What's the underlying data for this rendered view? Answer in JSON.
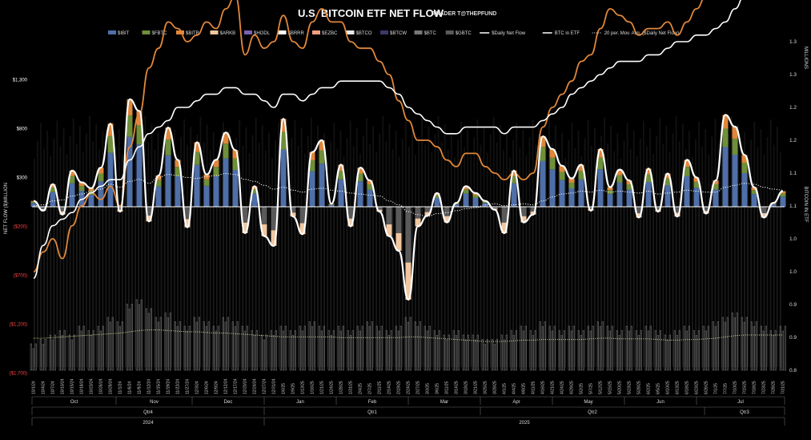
{
  "chart_data": {
    "type": "bar",
    "title": "U.S. BITCOIN ETF NET FLOW",
    "subtitle": "TRADER T@THEPFUND",
    "ylabel_left": "NET FLOW ($)MILLION",
    "ylabel_right": "BITCOIN IN ETF",
    "y2unit": "MILLIONS",
    "left_ticks": [
      {
        "label": "$1,300",
        "value": 1300,
        "color": "#ffffff"
      },
      {
        "label": "$800",
        "value": 800,
        "color": "#ffffff"
      },
      {
        "label": "$300",
        "value": 300,
        "color": "#ffffff"
      },
      {
        "label": "($200)",
        "value": -200,
        "color": "#ff4444"
      },
      {
        "label": "($700)",
        "value": -700,
        "color": "#ff4444"
      },
      {
        "label": "($1,200)",
        "value": -1200,
        "color": "#ff4444"
      },
      {
        "label": "($1,700)",
        "value": -1700,
        "color": "#ff4444"
      }
    ],
    "right_ticks": [
      "1.3",
      "1.3",
      "1.2",
      "1.2",
      "1.1",
      "1.1",
      "1.0",
      "1.0",
      "0.9",
      "0.9",
      "0.8"
    ],
    "legend": [
      {
        "label": "$IBIT",
        "color": "#4f6fa8",
        "kind": "bar"
      },
      {
        "label": "$FBTC",
        "color": "#6f8f3a",
        "kind": "bar"
      },
      {
        "label": "$BITB",
        "color": "#e0873a",
        "kind": "bar"
      },
      {
        "label": "$ARKB",
        "color": "#f2c7a0",
        "kind": "bar"
      },
      {
        "label": "$HODL",
        "color": "#7a5fb0",
        "kind": "bar"
      },
      {
        "label": "$BRRR",
        "color": "#ffffff",
        "kind": "bar"
      },
      {
        "label": "$EZBC",
        "color": "#f0a080",
        "kind": "bar"
      },
      {
        "label": "$BTCO",
        "color": "#e8e8e8",
        "kind": "bar"
      },
      {
        "label": "$BTCW",
        "color": "#3a3a6a",
        "kind": "bar"
      },
      {
        "label": "$BTC",
        "color": "#777777",
        "kind": "bar"
      },
      {
        "label": "$GBTC",
        "color": "#5a5a5a",
        "kind": "bar"
      },
      {
        "label": "$Daily Net Flow",
        "color": "#ffffff",
        "kind": "line"
      },
      {
        "label": "BTC in ETF",
        "color": "#ffffff",
        "kind": "line"
      },
      {
        "label": "20 per. Mov. Avg. ($Daily Net Flow)",
        "color": "#ffffff",
        "kind": "dotted"
      }
    ],
    "months": [
      "Oct",
      "Nov",
      "Dec",
      "Jan",
      "Feb",
      "Mar",
      "Apr",
      "May",
      "Jun",
      "Jul"
    ],
    "quarters": [
      "Qtr4",
      "Qtr1",
      "Qtr2",
      "Qtr3"
    ],
    "years": [
      "2024",
      "2025"
    ],
    "dates": [
      "10/1/24",
      "10/4/24",
      "10/7/24",
      "10/10/24",
      "10/15/24",
      "10/18/24",
      "10/23/24",
      "10/26/24",
      "10/29/24",
      "11/1/24",
      "11/6/24",
      "11/9/24",
      "11/12/24",
      "11/15/24",
      "11/19/24",
      "11/22/24",
      "11/27/24",
      "12/3/24",
      "12/6/24",
      "12/9/24",
      "12/12/24",
      "12/17/24",
      "12/20/24",
      "12/24/24",
      "12/27/24",
      "12/31/24",
      "1/6/25",
      "1/9/25",
      "1/13/25",
      "1/16/25",
      "1/21/25",
      "1/24/25",
      "1/28/25",
      "1/31/25",
      "2/4/25",
      "2/7/25",
      "2/11/25",
      "2/14/25",
      "2/19/25",
      "2/24/25",
      "2/27/25",
      "3/3/25",
      "3/6/25",
      "3/11/25",
      "3/14/25",
      "3/18/25",
      "3/21/25",
      "3/25/25",
      "3/28/25",
      "4/1/25",
      "4/4/25",
      "4/8/25",
      "4/11/25",
      "4/16/25",
      "4/21/25",
      "4/24/25",
      "4/29/25",
      "5/2/25",
      "5/7/25",
      "5/12/25",
      "5/15/25",
      "5/20/25",
      "5/23/25",
      "5/28/25",
      "6/2/25",
      "6/5/25",
      "6/10/25",
      "6/13/25",
      "6/18/25",
      "6/23/25",
      "6/26/25",
      "7/1/25",
      "7/7/25",
      "7/10/25",
      "7/15/25",
      "7/18/25",
      "7/23/25",
      "7/28/25",
      "7/31/25"
    ],
    "net_flow": [
      60,
      -40,
      230,
      -80,
      370,
      250,
      190,
      400,
      850,
      -50,
      1100,
      980,
      -150,
      320,
      810,
      480,
      -210,
      660,
      330,
      480,
      760,
      580,
      -270,
      210,
      -300,
      -400,
      900,
      -100,
      -280,
      560,
      680,
      30,
      430,
      -200,
      400,
      270,
      -50,
      -300,
      -450,
      -950,
      -200,
      -90,
      140,
      -160,
      40,
      210,
      140,
      60,
      -30,
      -270,
      370,
      -160,
      -80,
      720,
      590,
      420,
      290,
      430,
      -40,
      590,
      200,
      380,
      270,
      -110,
      390,
      -50,
      340,
      -100,
      480,
      300,
      -70,
      270,
      940,
      820,
      530,
      200,
      -110,
      40,
      160
    ],
    "btc_in_etf": [
      0.94,
      0.99,
      1.02,
      1.03,
      1.04,
      1.06,
      1.07,
      1.08,
      1.09,
      1.09,
      1.12,
      1.14,
      1.16,
      1.17,
      1.18,
      1.2,
      1.2,
      1.21,
      1.22,
      1.22,
      1.23,
      1.23,
      1.22,
      1.22,
      1.21,
      1.2,
      1.22,
      1.22,
      1.21,
      1.22,
      1.23,
      1.23,
      1.24,
      1.24,
      1.24,
      1.24,
      1.24,
      1.23,
      1.22,
      1.2,
      1.19,
      1.18,
      1.17,
      1.16,
      1.16,
      1.17,
      1.17,
      1.17,
      1.17,
      1.16,
      1.17,
      1.17,
      1.17,
      1.18,
      1.19,
      1.2,
      1.22,
      1.23,
      1.24,
      1.25,
      1.26,
      1.27,
      1.27,
      1.27,
      1.28,
      1.28,
      1.29,
      1.3,
      1.3,
      1.31,
      1.31,
      1.32,
      1.33,
      1.35,
      1.37,
      1.38,
      1.38,
      1.39,
      1.39
    ],
    "btc_price_line": [
      0.95,
      0.98,
      1.0,
      0.97,
      1.02,
      1.05,
      1.07,
      1.06,
      1.08,
      1.05,
      1.14,
      1.19,
      1.26,
      1.29,
      1.33,
      1.32,
      1.3,
      1.31,
      1.33,
      1.32,
      1.35,
      1.37,
      1.28,
      1.31,
      1.29,
      1.3,
      1.34,
      1.3,
      1.29,
      1.33,
      1.35,
      1.33,
      1.33,
      1.3,
      1.29,
      1.29,
      1.27,
      1.25,
      1.21,
      1.18,
      1.15,
      1.15,
      1.14,
      1.12,
      1.11,
      1.13,
      1.13,
      1.11,
      1.1,
      1.09,
      1.1,
      1.09,
      1.1,
      1.17,
      1.2,
      1.22,
      1.24,
      1.27,
      1.28,
      1.32,
      1.35,
      1.34,
      1.33,
      1.31,
      1.32,
      1.32,
      1.33,
      1.31,
      1.33,
      1.35,
      1.37,
      1.4,
      1.44,
      1.45,
      1.45,
      1.44,
      1.44,
      1.45,
      1.45
    ],
    "moving_avg": [
      10,
      20,
      60,
      70,
      110,
      130,
      160,
      180,
      230,
      200,
      260,
      280,
      240,
      300,
      330,
      320,
      300,
      290,
      310,
      320,
      340,
      330,
      280,
      260,
      220,
      180,
      200,
      170,
      150,
      180,
      190,
      170,
      160,
      140,
      130,
      120,
      110,
      60,
      20,
      -50,
      -80,
      -100,
      -70,
      -60,
      -40,
      -20,
      -10,
      20,
      30,
      10,
      20,
      30,
      20,
      60,
      100,
      130,
      140,
      160,
      150,
      170,
      150,
      160,
      150,
      140,
      160,
      130,
      140,
      150,
      170,
      160,
      150,
      150,
      200,
      220,
      240,
      230,
      200,
      180,
      170
    ],
    "volume_rel": [
      0.3,
      0.35,
      0.4,
      0.45,
      0.4,
      0.5,
      0.45,
      0.5,
      0.6,
      0.55,
      0.75,
      0.8,
      0.7,
      0.6,
      0.65,
      0.55,
      0.5,
      0.6,
      0.55,
      0.5,
      0.6,
      0.55,
      0.5,
      0.45,
      0.4,
      0.45,
      0.5,
      0.45,
      0.5,
      0.55,
      0.5,
      0.45,
      0.5,
      0.45,
      0.5,
      0.55,
      0.5,
      0.45,
      0.5,
      0.6,
      0.55,
      0.5,
      0.45,
      0.4,
      0.45,
      0.4,
      0.4,
      0.35,
      0.35,
      0.4,
      0.45,
      0.5,
      0.45,
      0.55,
      0.5,
      0.45,
      0.5,
      0.45,
      0.5,
      0.55,
      0.5,
      0.45,
      0.5,
      0.45,
      0.5,
      0.45,
      0.4,
      0.45,
      0.5,
      0.45,
      0.5,
      0.55,
      0.6,
      0.65,
      0.6,
      0.55,
      0.5,
      0.45,
      0.5
    ],
    "volume_avg": [
      0.5,
      0.5,
      0.51,
      0.52,
      0.53,
      0.54,
      0.55,
      0.56,
      0.57,
      0.58,
      0.6,
      0.62,
      0.63,
      0.63,
      0.62,
      0.61,
      0.6,
      0.6,
      0.59,
      0.58,
      0.58,
      0.57,
      0.56,
      0.55,
      0.54,
      0.53,
      0.52,
      0.52,
      0.52,
      0.52,
      0.52,
      0.52,
      0.51,
      0.51,
      0.51,
      0.51,
      0.51,
      0.51,
      0.51,
      0.52,
      0.52,
      0.51,
      0.5,
      0.49,
      0.48,
      0.47,
      0.46,
      0.45,
      0.45,
      0.45,
      0.46,
      0.47,
      0.47,
      0.48,
      0.48,
      0.48,
      0.48,
      0.48,
      0.49,
      0.5,
      0.5,
      0.49,
      0.49,
      0.49,
      0.49,
      0.48,
      0.47,
      0.47,
      0.48,
      0.48,
      0.49,
      0.5,
      0.52,
      0.54,
      0.55,
      0.55,
      0.55,
      0.55,
      0.55
    ]
  }
}
